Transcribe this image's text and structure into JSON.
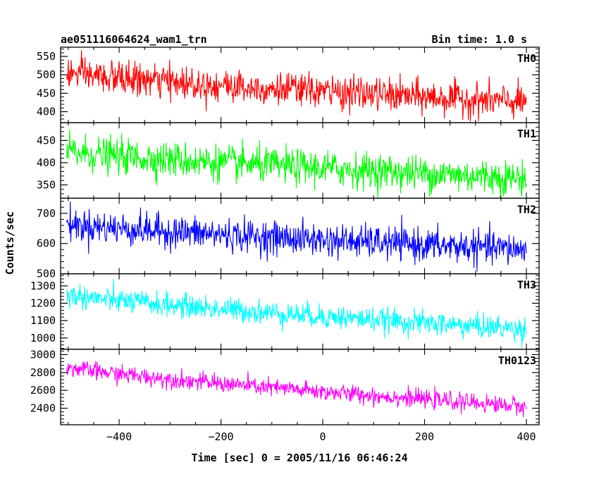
{
  "header": {
    "title": "ae051116064624_wam1_trn",
    "bin_time": "Bin time: 1.0 s"
  },
  "chart_data": {
    "type": "line",
    "xlabel": "Time [sec] 0 = 2005/11/16 06:46:24",
    "ylabel": "Counts/sec",
    "xlim": [
      -515,
      425
    ],
    "x_ticks": [
      -400,
      -200,
      0,
      200,
      400
    ],
    "x_tick_labels": [
      "−400",
      "−200",
      "0",
      "200",
      "400"
    ],
    "x_range": [
      -503,
      400
    ],
    "bin_time": 1.0,
    "panels": [
      {
        "label": "TH0",
        "color": "#ff0000",
        "ylim": [
          370,
          575
        ],
        "y_ticks": [
          400,
          450,
          500,
          550
        ],
        "y_tick_labels": [
          "400",
          "450",
          "500",
          "550"
        ],
        "trend_start": 505,
        "trend_end": 425,
        "noise": 25
      },
      {
        "label": "TH1",
        "color": "#00ff00",
        "ylim": [
          320,
          490
        ],
        "y_ticks": [
          350,
          400,
          450
        ],
        "y_tick_labels": [
          "350",
          "400",
          "450"
        ],
        "trend_start": 425,
        "trend_end": 365,
        "noise": 22
      },
      {
        "label": "TH2",
        "color": "#0000ff",
        "ylim": [
          500,
          750
        ],
        "y_ticks": [
          500,
          600,
          700
        ],
        "y_tick_labels": [
          "500",
          "600",
          "700"
        ],
        "trend_start": 665,
        "trend_end": 580,
        "noise": 30
      },
      {
        "label": "TH3",
        "color": "#00ffff",
        "ylim": [
          935,
          1370
        ],
        "y_ticks": [
          1000,
          1100,
          1200,
          1300
        ],
        "y_tick_labels": [
          "1000",
          "1100",
          "1200",
          "1300"
        ],
        "trend_start": 1250,
        "trend_end": 1050,
        "noise": 38
      },
      {
        "label": "TH0123",
        "color": "#ff00ff",
        "ylim": [
          2215,
          3060
        ],
        "y_ticks": [
          2400,
          2600,
          2800,
          3000
        ],
        "y_tick_labels": [
          "2400",
          "2600",
          "2800",
          "3000"
        ],
        "trend_start": 2860,
        "trend_end": 2420,
        "noise": 55
      }
    ]
  }
}
